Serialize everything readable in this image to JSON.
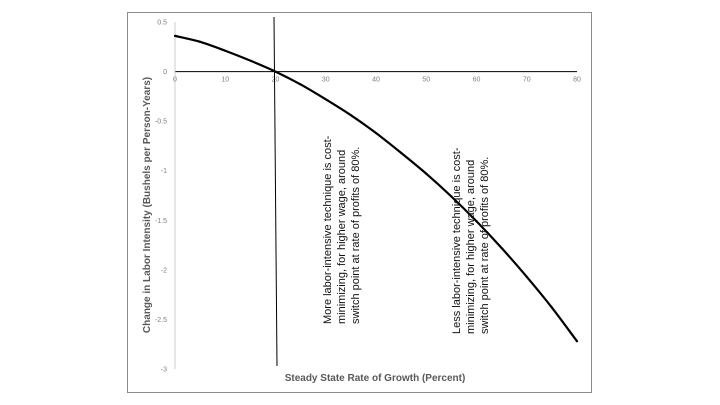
{
  "chart_data": {
    "type": "line",
    "title": "",
    "xlabel": "Steady State Rate of Growth (Percent)",
    "ylabel": "Change in Labor Intensity (Bushels per Person-Years)",
    "xlim": [
      0,
      80
    ],
    "ylim": [
      -3,
      0.5
    ],
    "x_ticks": [
      0,
      10,
      20,
      30,
      40,
      50,
      60,
      70,
      80
    ],
    "y_ticks": [
      0.5,
      0,
      -0.5,
      -1,
      -1.5,
      -2,
      -2.5,
      -3
    ],
    "grid": false,
    "legend": "none",
    "line_color": "#000000",
    "series": [
      {
        "x": [
          0,
          5,
          10,
          15,
          20,
          25,
          30,
          35,
          40,
          45,
          50,
          55,
          60,
          65,
          70,
          75,
          80
        ],
        "values": [
          0.36,
          0.3,
          0.21,
          0.11,
          0.0,
          -0.13,
          -0.28,
          -0.44,
          -0.62,
          -0.82,
          -1.03,
          -1.26,
          -1.51,
          -1.78,
          -2.07,
          -2.38,
          -2.72
        ]
      }
    ],
    "vertical_line": {
      "x": 20
    },
    "annotations": [
      {
        "lines": [
          "More labor-intensive technique is cost-",
          "minimizing, for higher wage, around",
          "switch point at rate of profits of 80%."
        ]
      },
      {
        "lines": [
          "Less labor-intensive technique is cost-",
          "minimizing, for higher wage, around",
          "switch point at rate of profits of 80%."
        ]
      }
    ]
  }
}
